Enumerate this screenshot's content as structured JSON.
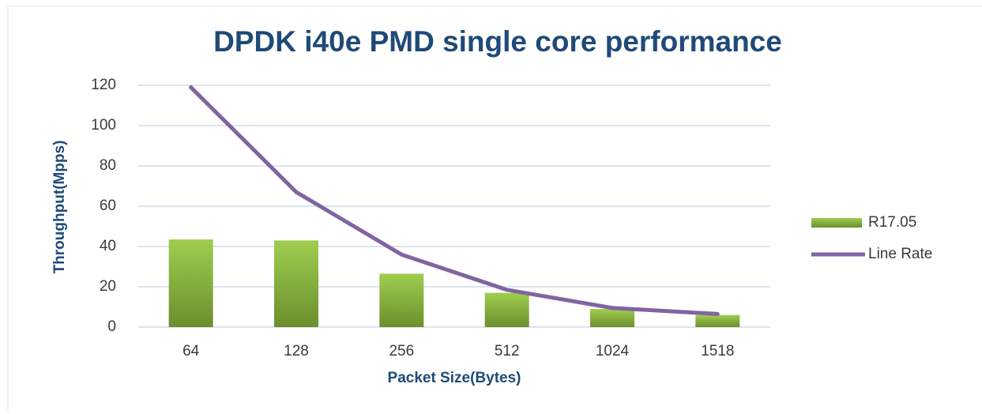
{
  "chart_data": {
    "type": "bar",
    "title": "DPDK i40e PMD single core performance",
    "x_label": "Packet Size(Bytes)",
    "y_label": "Throughput(Mpps)",
    "categories": [
      "64",
      "128",
      "256",
      "512",
      "1024",
      "1518"
    ],
    "series": [
      {
        "name": "R17.05",
        "type": "bar",
        "color": "#8cb83f",
        "values": [
          43.5,
          43,
          26.5,
          17,
          9,
          6
        ]
      },
      {
        "name": "Line Rate",
        "type": "line",
        "color": "#8064a2",
        "values": [
          119,
          67,
          36,
          18.5,
          9.5,
          6.5
        ]
      }
    ],
    "ylim": [
      0,
      120
    ],
    "yticks": [
      0,
      20,
      40,
      60,
      80,
      100,
      120
    ],
    "grid": true,
    "legend": "right"
  }
}
